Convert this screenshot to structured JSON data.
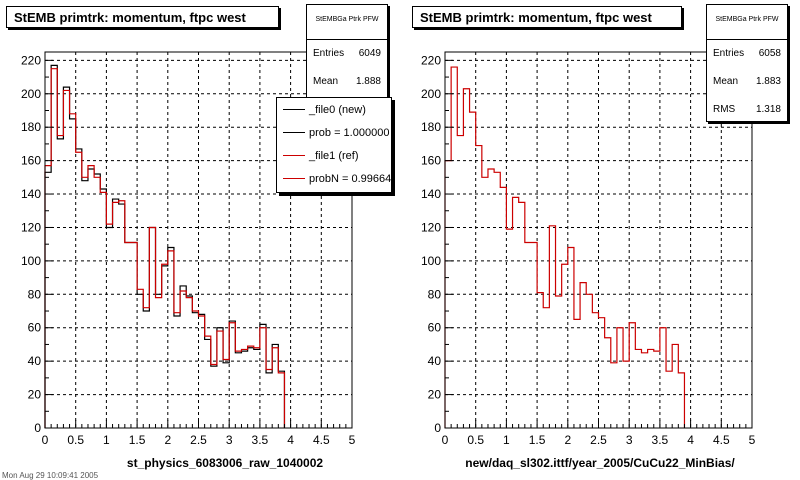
{
  "panels": [
    {
      "title": "StEMB primtrk: momentum, ftpc west",
      "stats": {
        "name": "StEMBGa Ptrk PFW",
        "rows": [
          {
            "label": "Entries",
            "value": "6049"
          },
          {
            "label": "Mean",
            "value": "1.888"
          }
        ]
      },
      "xlabel": "st_physics_6083006_raw_1040002",
      "legend": [
        {
          "label": "_file0 (new)",
          "color": "#000000"
        },
        {
          "label": "prob = 1.000000",
          "color": "#000000"
        },
        {
          "label": "_file1 (ref)",
          "color": "#cc0000"
        },
        {
          "label": "probN = 0.99664",
          "color": "#cc0000"
        }
      ]
    },
    {
      "title": "StEMB primtrk: momentum, ftpc west",
      "stats": {
        "name": "StEMBGa Ptrk PFW",
        "rows": [
          {
            "label": "Entries",
            "value": "6058"
          },
          {
            "label": "Mean",
            "value": "1.883"
          },
          {
            "label": "RMS",
            "value": "1.318"
          }
        ]
      },
      "xlabel": "new/daq_sl302.ittf/year_2005/CuCu22_MinBias/"
    }
  ],
  "footer": "Mon Aug 29 10:09:41 2005",
  "chart_data": [
    {
      "type": "histogram",
      "title": "StEMB primtrk: momentum, ftpc west",
      "xlabel": "st_physics_6083006_raw_1040002",
      "xlim": [
        0,
        5
      ],
      "ylim": [
        0,
        225
      ],
      "xticks": [
        0,
        0.5,
        1,
        1.5,
        2,
        2.5,
        3,
        3.5,
        4,
        4.5,
        5
      ],
      "yticks": [
        0,
        20,
        40,
        60,
        80,
        100,
        120,
        140,
        160,
        180,
        200,
        220
      ],
      "grid": true,
      "bin_width": 0.1,
      "series": [
        {
          "name": "_file0 (new)",
          "color": "#000000",
          "values": [
            153,
            217,
            173,
            204,
            185,
            167,
            148,
            155,
            152,
            143,
            120,
            137,
            134,
            111,
            111,
            80,
            70,
            120,
            80,
            97,
            108,
            67,
            85,
            79,
            69,
            68,
            53,
            37,
            60,
            39,
            64,
            45,
            46,
            48,
            47,
            62,
            33,
            50,
            34,
            null
          ]
        },
        {
          "name": "_file1 (ref)",
          "color": "#cc0000",
          "values": [
            157,
            215,
            175,
            202,
            188,
            165,
            150,
            157,
            150,
            141,
            122,
            135,
            136,
            111,
            111,
            83,
            72,
            120,
            78,
            98,
            106,
            69,
            82,
            78,
            70,
            67,
            55,
            38,
            58,
            41,
            63,
            46,
            47,
            49,
            48,
            60,
            35,
            48,
            33,
            null
          ]
        }
      ]
    },
    {
      "type": "histogram",
      "title": "StEMB primtrk: momentum, ftpc west",
      "xlabel": "new/daq_sl302.ittf/year_2005/CuCu22_MinBias/",
      "xlim": [
        0,
        5
      ],
      "ylim": [
        0,
        225
      ],
      "xticks": [
        0,
        0.5,
        1,
        1.5,
        2,
        2.5,
        3,
        3.5,
        4,
        4.5,
        5
      ],
      "yticks": [
        0,
        20,
        40,
        60,
        80,
        100,
        120,
        140,
        160,
        180,
        200,
        220
      ],
      "grid": true,
      "bin_width": 0.1,
      "series": [
        {
          "name": "",
          "color": "#cc0000",
          "values": [
            160,
            216,
            175,
            203,
            189,
            169,
            150,
            155,
            153,
            144,
            119,
            138,
            135,
            111,
            111,
            81,
            72,
            121,
            79,
            98,
            108,
            65,
            87,
            80,
            69,
            66,
            54,
            39,
            60,
            40,
            63,
            47,
            45,
            47,
            46,
            60,
            34,
            50,
            33
          ]
        }
      ]
    }
  ]
}
